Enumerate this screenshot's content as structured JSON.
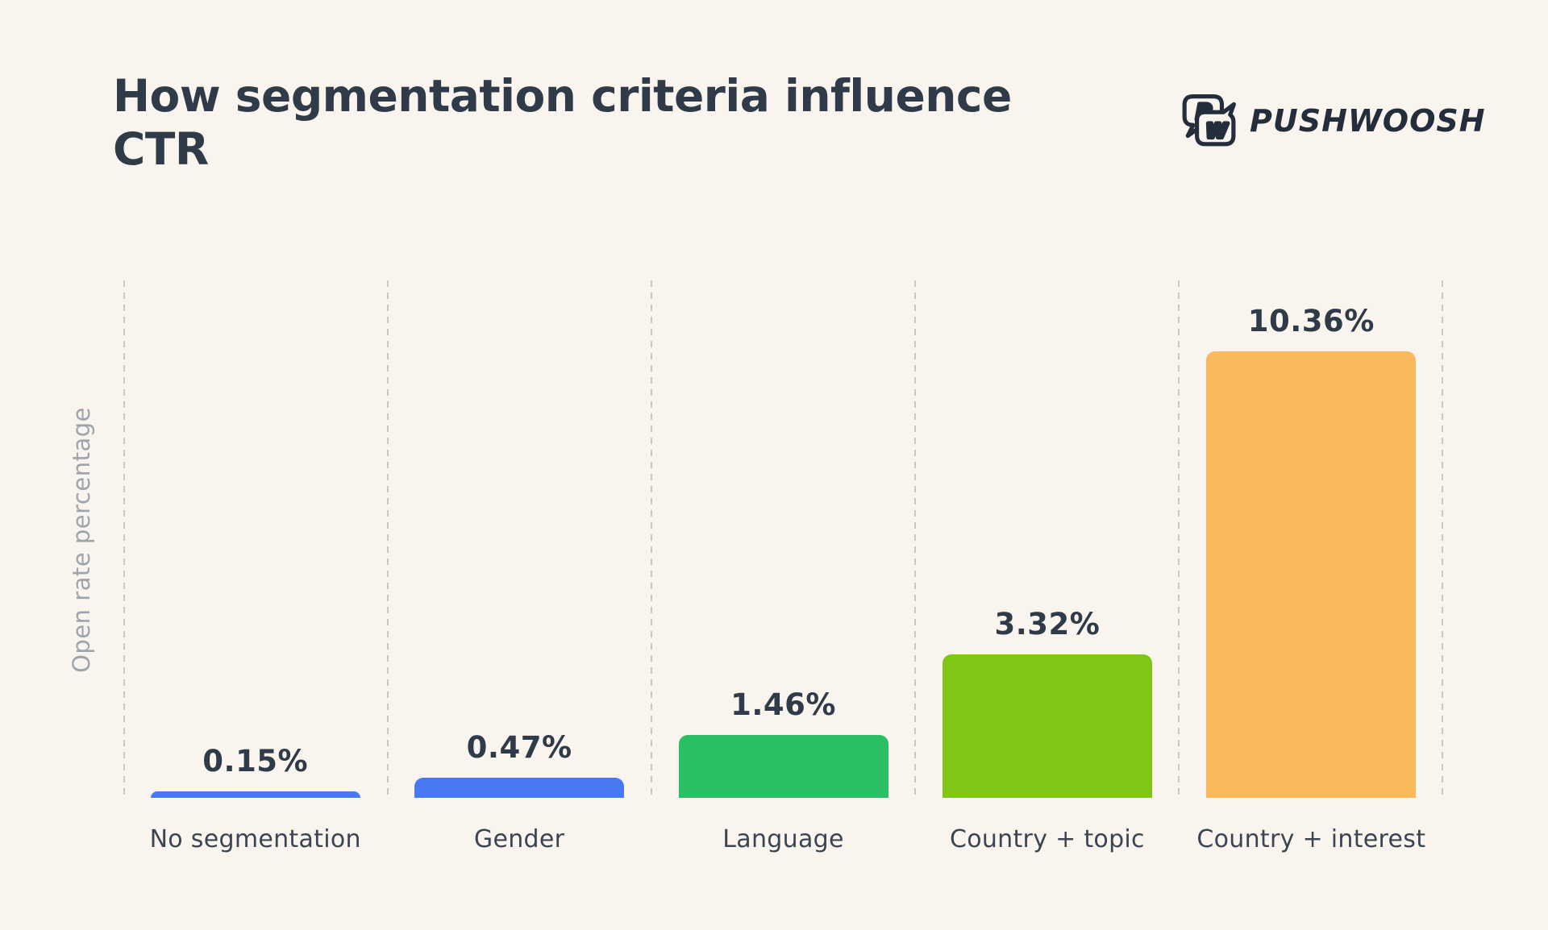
{
  "page": {
    "background_color": "#FAF4EF",
    "title": "How segmentation criteria influence CTR",
    "title_lines": [
      "How segmentation criteria influence",
      "CTR"
    ]
  },
  "logo": {
    "brand_text": "PUSHWOOSH",
    "icon": "pushwoosh-pw-speech-bubbles-icon",
    "icon_letters": [
      "P",
      "W"
    ],
    "color": "#232D3B"
  },
  "chart_data": {
    "type": "bar",
    "title": "How segmentation criteria influence CTR",
    "xlabel": "",
    "ylabel": "Open rate percentage",
    "categories": [
      "No segmentation",
      "Gender",
      "Language",
      "Country + topic",
      "Country + interest"
    ],
    "values": [
      0.15,
      0.47,
      1.46,
      3.32,
      10.36
    ],
    "value_labels": [
      "0.15%",
      "0.47%",
      "1.46%",
      "3.32%",
      "10.36%"
    ],
    "bar_colors": [
      "#4779F2",
      "#4779F2",
      "#2ABF62",
      "#80C614",
      "#FBB95E"
    ],
    "ylim": [
      0,
      12
    ],
    "grid": "vertical-dashed-column-separators",
    "grid_color": "#C5C7CA",
    "legend": false,
    "text_colors": {
      "title": "#2F3B49",
      "value_label": "#2F3B49",
      "category_label": "#3A4552",
      "axis_label": "#9EA4AB"
    }
  }
}
